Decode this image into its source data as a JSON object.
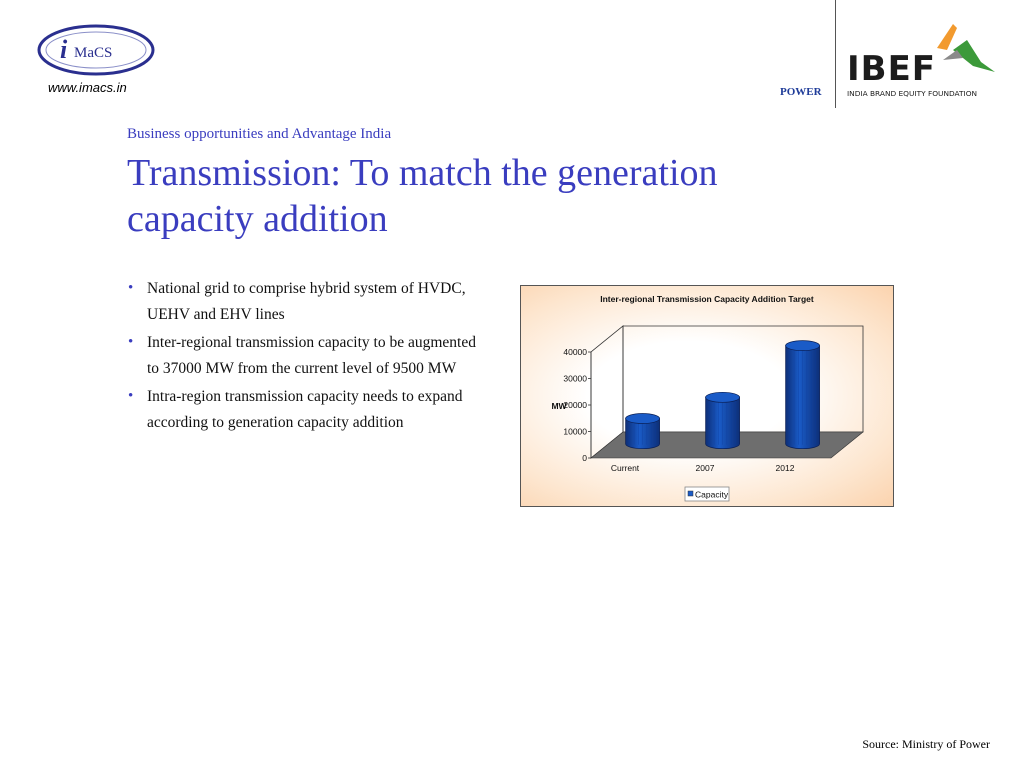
{
  "header": {
    "imacs_logo_text": "iMaCS",
    "imacs_url": "www.imacs.in",
    "section_label": "POWER",
    "ibef_logo_text": "IBEF",
    "ibef_logo_subtext": "INDIA BRAND EQUITY FOUNDATION"
  },
  "slide": {
    "subtitle": "Business opportunities and Advantage India",
    "title": "Transmission: To match the generation capacity addition",
    "bullets": [
      "National grid to comprise hybrid system of HVDC, UEHV and EHV lines",
      "Inter-regional transmission capacity to be augmented to 37000 MW from the current level of 9500 MW",
      "Intra-region transmission capacity needs to expand according to generation capacity addition"
    ],
    "bullet_symbol": "•",
    "source": "Source: Ministry of Power"
  },
  "colors": {
    "accent": "#3a3dbf",
    "bar_fill": "#1a5bc7",
    "bar_dark": "#0d2f78",
    "floor": "#6e6e6e"
  },
  "chart_data": {
    "type": "bar",
    "title": "Inter-regional Transmission Capacity Addition Target",
    "categories": [
      "Current",
      "2007",
      "2012"
    ],
    "series": [
      {
        "name": "Capacity",
        "values": [
          9500,
          17500,
          37000
        ]
      }
    ],
    "xlabel": "",
    "ylabel": "MW",
    "ylim": [
      0,
      40000
    ],
    "yticks": [
      "0",
      "10000",
      "20000",
      "30000",
      "40000"
    ],
    "legend_position": "bottom",
    "grid": false
  }
}
